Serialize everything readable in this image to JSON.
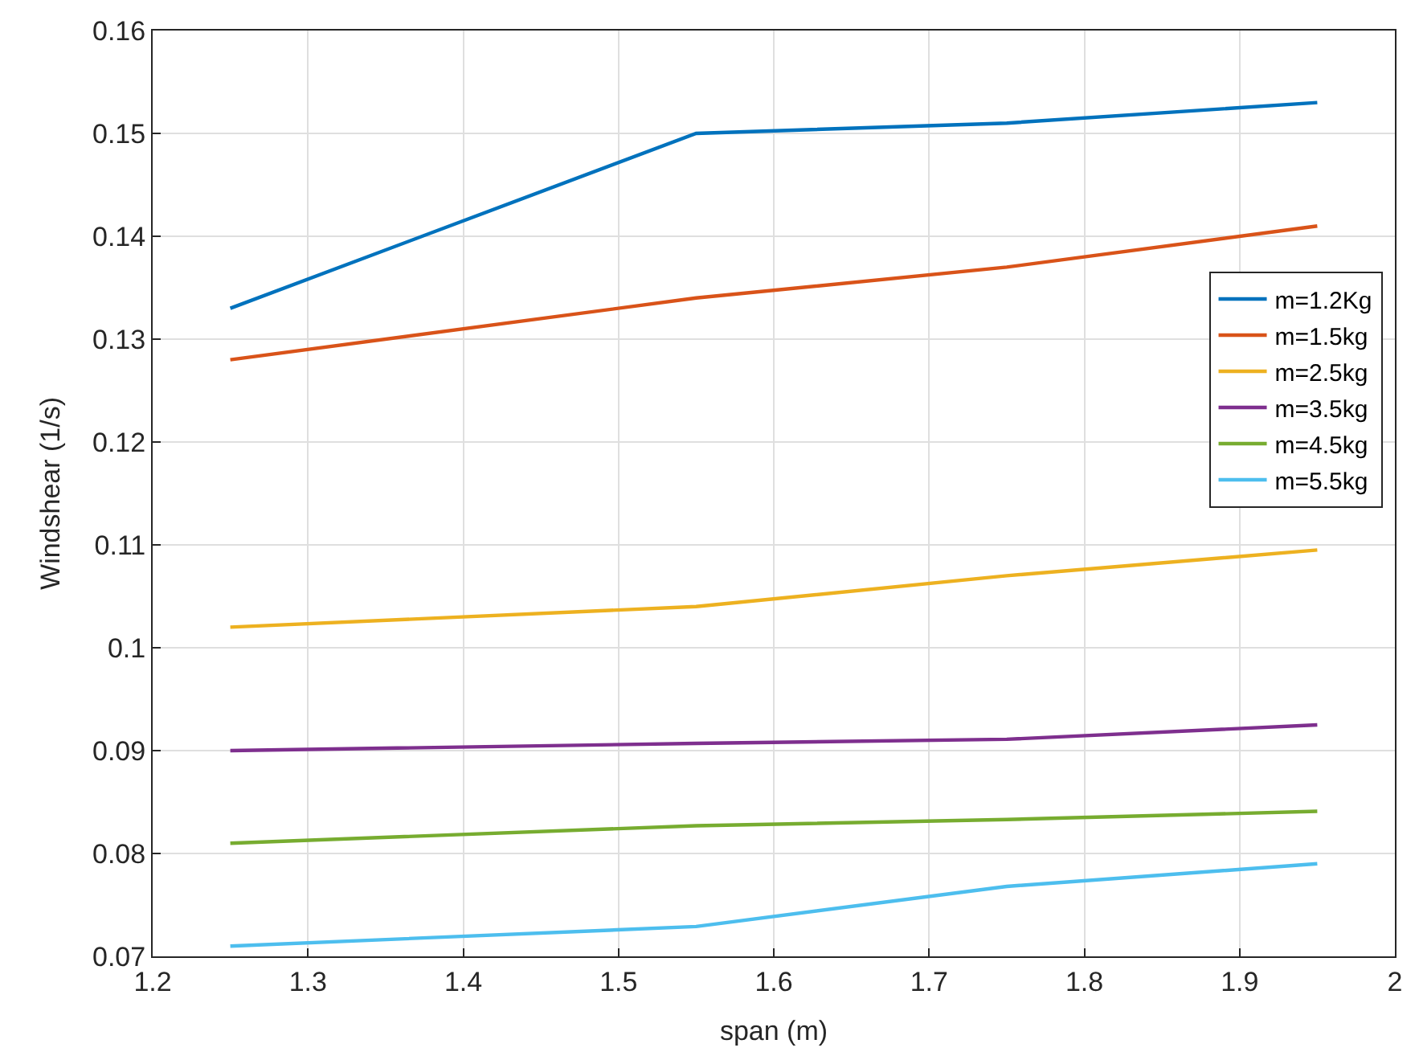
{
  "chart_data": {
    "type": "line",
    "xlabel": "span (m)",
    "ylabel": "Windshear (1/s)",
    "x": [
      1.25,
      1.55,
      1.75,
      1.95
    ],
    "series": [
      {
        "name": "m=1.2Kg",
        "color": "#0072bd",
        "values": [
          0.133,
          0.15,
          0.151,
          0.153
        ]
      },
      {
        "name": "m=1.5kg",
        "color": "#d95319",
        "values": [
          0.128,
          0.134,
          0.137,
          0.141
        ]
      },
      {
        "name": "m=2.5kg",
        "color": "#edb120",
        "values": [
          0.102,
          0.104,
          0.107,
          0.1095
        ]
      },
      {
        "name": "m=3.5kg",
        "color": "#7e2f8e",
        "values": [
          0.09,
          0.0907,
          0.0911,
          0.0925
        ]
      },
      {
        "name": "m=4.5kg",
        "color": "#77ac30",
        "values": [
          0.081,
          0.0827,
          0.0833,
          0.0841
        ]
      },
      {
        "name": "m=5.5kg",
        "color": "#4dbeee",
        "values": [
          0.071,
          0.0729,
          0.0768,
          0.079
        ]
      }
    ],
    "xlim": [
      1.2,
      2
    ],
    "xticks": [
      1.2,
      1.3,
      1.4,
      1.5,
      1.6,
      1.7,
      1.8,
      1.9,
      2
    ],
    "ylim": [
      0.07,
      0.16
    ],
    "yticks": [
      0.07,
      0.08,
      0.09,
      0.1,
      0.11,
      0.12,
      0.13,
      0.14,
      0.15,
      0.16
    ],
    "grid": true,
    "legend": "top right",
    "marker": "none",
    "line_style": "solid"
  }
}
